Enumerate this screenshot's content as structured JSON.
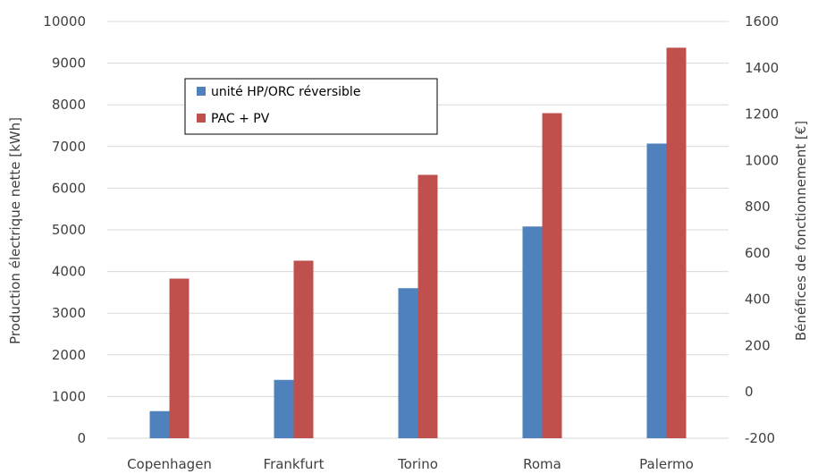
{
  "chart_data": {
    "type": "bar",
    "title": "",
    "categories": [
      "Copenhagen",
      "Frankfurt",
      "Torino",
      "Roma",
      "Palermo"
    ],
    "series": [
      {
        "name": "unité HP/ORC réversible",
        "values": [
          650,
          1400,
          3600,
          5080,
          7070
        ],
        "color": "#4f81bd"
      },
      {
        "name": "PAC + PV",
        "values": [
          3830,
          4260,
          6320,
          7800,
          9370
        ],
        "color": "#c0504d"
      }
    ],
    "ylabel": "Production électrique nette [kWh]",
    "y2label": "Bénéfices de fonctionnement [€]",
    "ylim": [
      0,
      10000
    ],
    "y2lim": [
      -200,
      1600
    ],
    "yticks": [
      "0",
      "1000",
      "2000",
      "3000",
      "4000",
      "5000",
      "6000",
      "7000",
      "8000",
      "9000",
      "10000"
    ],
    "y2ticks": [
      "-200",
      "0",
      "200",
      "400",
      "600",
      "800",
      "1000",
      "1200",
      "1400",
      "1600"
    ],
    "grid": true,
    "legend": "top-left"
  }
}
